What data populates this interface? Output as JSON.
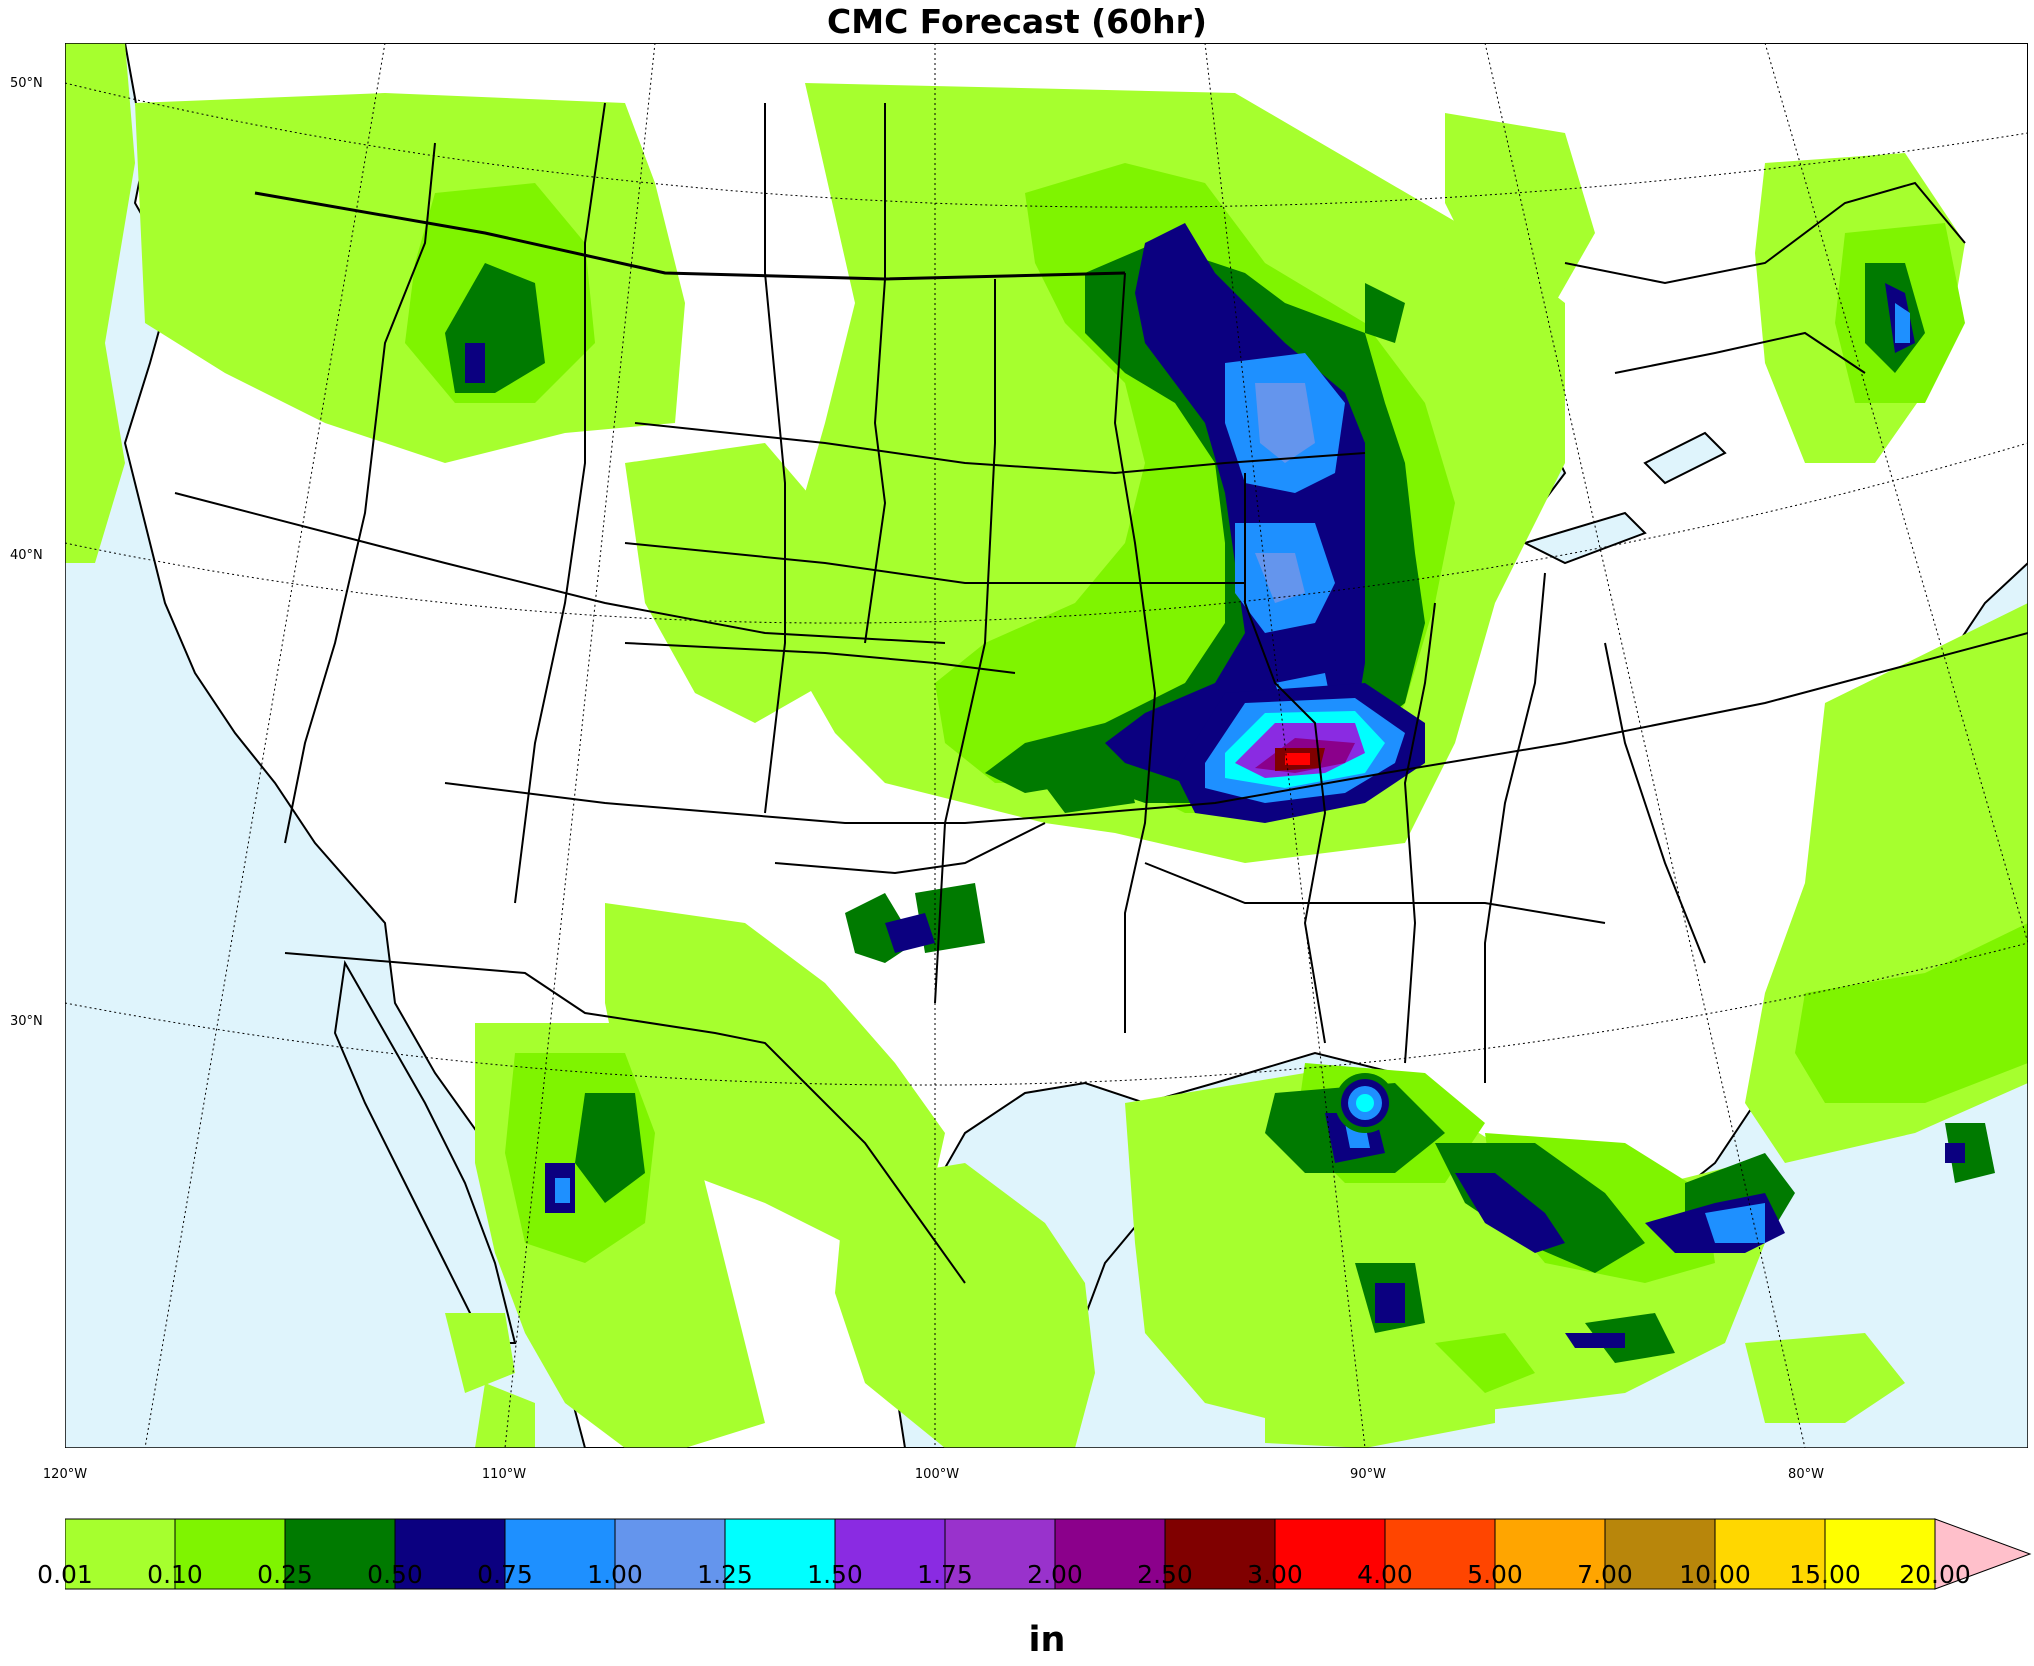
{
  "title": "CMC Forecast (60hr)",
  "map": {
    "lat_labels": [
      "50°N",
      "40°N",
      "30°N"
    ],
    "lon_labels": [
      "120°W",
      "110°W",
      "100°W",
      "90°W",
      "80°W"
    ],
    "colors": {
      "ocean": "#dff4fc",
      "land": "#ffffff",
      "border": "#000000"
    },
    "precip_features": [
      {
        "region": "Upper Midwest / Wisconsin-Michigan",
        "max_level": "1.00"
      },
      {
        "region": "Illinois",
        "max_level": "1.00"
      },
      {
        "region": "Missouri / Ohio Valley",
        "max_level": "4.00"
      },
      {
        "region": "Idaho / Montana",
        "max_level": "0.75"
      },
      {
        "region": "Maine / Quebec",
        "max_level": "1.00"
      },
      {
        "region": "Oklahoma / Texas Panhandle",
        "max_level": "0.75"
      },
      {
        "region": "Sonora / Chihuahua",
        "max_level": "1.00"
      },
      {
        "region": "Louisiana",
        "max_level": "1.25"
      },
      {
        "region": "Gulf Coast / Florida Panhandle",
        "max_level": "0.75"
      },
      {
        "region": "Atlantic off Carolinas",
        "max_level": "1.25"
      }
    ]
  },
  "colorbar": {
    "units": "in",
    "tick_labels": [
      "0.01",
      "0.10",
      "0.25",
      "0.50",
      "0.75",
      "1.00",
      "1.25",
      "1.50",
      "1.75",
      "2.00",
      "2.50",
      "3.00",
      "4.00",
      "5.00",
      "7.00",
      "10.00",
      "15.00",
      "20.00"
    ],
    "colors": [
      "#a6ff2e",
      "#7ff400",
      "#007a00",
      "#0b0080",
      "#1e90ff",
      "#6495ed",
      "#00ffff",
      "#8a2be2",
      "#9932cc",
      "#8b008b",
      "#800000",
      "#ff0000",
      "#ff4500",
      "#ffa500",
      "#b8860b",
      "#ffd700",
      "#ffff00"
    ],
    "extend_color": "#ffc0cb"
  }
}
